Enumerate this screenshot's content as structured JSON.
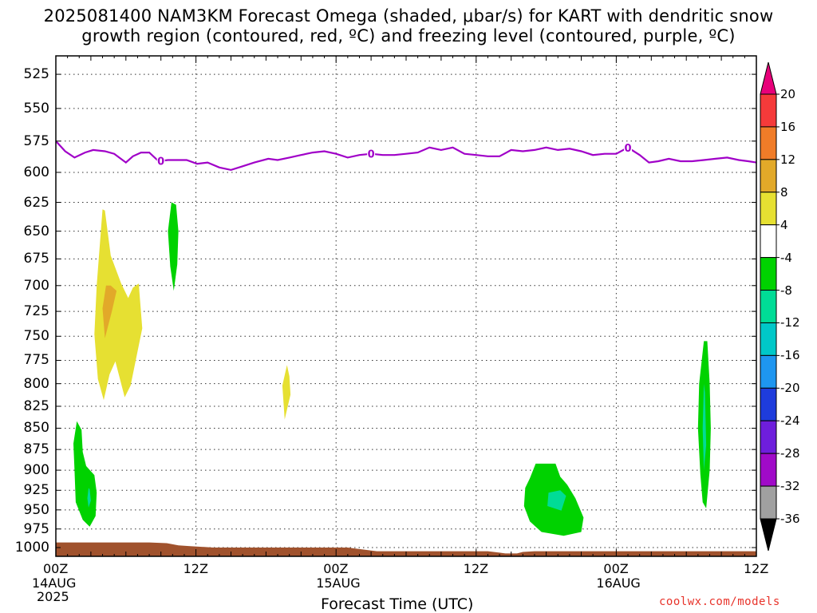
{
  "title": {
    "line1": "2025081400 NAM3KM Forecast Omega (shaded, μbar/s) for KART with dendritic snow",
    "line2": "growth region (contoured, red, ºC) and freezing level (contoured, purple, ºC)"
  },
  "footer": {
    "xlabel": "Forecast Time (UTC)",
    "credit": "coolwx.com/models"
  },
  "chart_data": {
    "type": "contour",
    "x_unit": "forecast hour from 2025-08-14 00Z",
    "x_range": [
      0,
      60
    ],
    "y_unit": "pressure (mb)",
    "y_range": [
      1012,
      512
    ],
    "y_scale": "log",
    "y_ticks": [
      525,
      550,
      575,
      600,
      625,
      650,
      675,
      700,
      725,
      750,
      775,
      800,
      825,
      850,
      875,
      900,
      925,
      950,
      975,
      1000
    ],
    "x_ticks": [
      {
        "hour": 0,
        "label": "00Z",
        "date": "14AUG",
        "year": "2025"
      },
      {
        "hour": 12,
        "label": "12Z"
      },
      {
        "hour": 24,
        "label": "00Z",
        "date": "15AUG"
      },
      {
        "hour": 36,
        "label": "12Z"
      },
      {
        "hour": 48,
        "label": "00Z",
        "date": "16AUG"
      },
      {
        "hour": 60,
        "label": "12Z"
      }
    ],
    "grid": true,
    "colorbar": {
      "labels": [
        "20",
        "16",
        "12",
        "8",
        "4",
        "-4",
        "-8",
        "-12",
        "-16",
        "-20",
        "-24",
        "-28",
        "-32",
        "-36"
      ],
      "colors": [
        "#e8007a",
        "#f53a3a",
        "#f07c28",
        "#e2a929",
        "#e6e032",
        "#ffffff",
        "#00d200",
        "#00dc96",
        "#00c8c8",
        "#1e96f0",
        "#1e3cdc",
        "#6e1edc",
        "#a00ac8",
        "#a0a0a0",
        "#000000"
      ]
    },
    "freezing_level": {
      "label": "0",
      "color": "#a000c8",
      "hours": [
        0,
        0.8,
        1.6,
        2.5,
        3.2,
        4.2,
        5,
        6,
        6.6,
        7.3,
        8,
        8.8,
        9.6,
        10.4,
        11.2,
        12.1,
        13,
        14,
        15,
        16,
        17,
        18.2,
        19,
        20,
        21,
        22,
        23,
        24,
        25,
        26,
        27,
        28,
        29,
        30,
        31,
        32,
        33,
        34,
        35,
        36,
        37,
        38,
        39,
        40,
        41,
        42,
        43,
        44,
        45,
        46,
        47,
        48,
        49,
        50,
        50.8,
        51.6,
        52.5,
        53.5,
        54.5,
        55.5,
        56.5,
        57.5,
        58.5,
        59.3,
        60
      ],
      "pressure": [
        575,
        583,
        588,
        584,
        582,
        583,
        585,
        592,
        587,
        584,
        584,
        591,
        590,
        590,
        590,
        593,
        592,
        596,
        598,
        595,
        592,
        589,
        590,
        588,
        586,
        584,
        583,
        585,
        588,
        586,
        585,
        586,
        586,
        585,
        584,
        580,
        582,
        580,
        585,
        586,
        587,
        587,
        582,
        583,
        582,
        580,
        582,
        581,
        583,
        586,
        585,
        585,
        580,
        586,
        592,
        591,
        589,
        591,
        591,
        590,
        589,
        588,
        590,
        591,
        592
      ],
      "labels_at_hours": [
        9,
        27,
        49
      ]
    },
    "omega_regions": [
      {
        "level": "4 to 8",
        "color": "#e6e032",
        "outline": [
          [
            4,
            631
          ],
          [
            3.5,
            700
          ],
          [
            3.3,
            748
          ],
          [
            3.6,
            795
          ],
          [
            4.1,
            818
          ],
          [
            4.6,
            790
          ],
          [
            5.1,
            776
          ],
          [
            5.9,
            815
          ],
          [
            6.4,
            802
          ],
          [
            7.4,
            742
          ],
          [
            7.1,
            698
          ],
          [
            6.6,
            702
          ],
          [
            6.2,
            712
          ],
          [
            5.6,
            698
          ],
          [
            4.7,
            672
          ],
          [
            4.2,
            632
          ]
        ]
      },
      {
        "level": "8 to 12",
        "color": "#e2a929",
        "outline": [
          [
            4.3,
            700
          ],
          [
            4,
            722
          ],
          [
            4.2,
            752
          ],
          [
            4.8,
            725
          ],
          [
            5.2,
            705
          ],
          [
            4.7,
            700
          ]
        ]
      },
      {
        "level": "4 to 8",
        "color": "#e6e032",
        "outline": [
          [
            19.8,
            780
          ],
          [
            19.4,
            802
          ],
          [
            19.6,
            840
          ],
          [
            20.1,
            812
          ],
          [
            20,
            792
          ]
        ]
      },
      {
        "level": "-4 to -8",
        "color": "#00d200",
        "outline": [
          [
            9.9,
            625
          ],
          [
            9.6,
            650
          ],
          [
            9.8,
            682
          ],
          [
            10.1,
            705
          ],
          [
            10.4,
            680
          ],
          [
            10.5,
            650
          ],
          [
            10.3,
            627
          ]
        ]
      },
      {
        "level": "-4 to -8",
        "color": "#00d200",
        "outline": [
          [
            1.8,
            842
          ],
          [
            1.5,
            868
          ],
          [
            1.6,
            900
          ],
          [
            1.7,
            940
          ],
          [
            2.3,
            963
          ],
          [
            2.9,
            972
          ],
          [
            3.4,
            958
          ],
          [
            3.5,
            928
          ],
          [
            3.3,
            906
          ],
          [
            2.6,
            895
          ],
          [
            2.3,
            878
          ],
          [
            2.2,
            852
          ]
        ]
      },
      {
        "level": "-8 to -12",
        "color": "#00dc96",
        "outline": [
          [
            2.8,
            922
          ],
          [
            2.7,
            935
          ],
          [
            2.8,
            947
          ],
          [
            3,
            938
          ],
          [
            2.9,
            924
          ]
        ]
      },
      {
        "level": "-4 to -8",
        "color": "#00d200",
        "outline": [
          [
            41.1,
            892
          ],
          [
            40.6,
            910
          ],
          [
            40.2,
            922
          ],
          [
            40.1,
            945
          ],
          [
            40.6,
            965
          ],
          [
            41.6,
            979
          ],
          [
            43.5,
            984
          ],
          [
            45,
            979
          ],
          [
            45.2,
            960
          ],
          [
            44.5,
            935
          ],
          [
            43.8,
            918
          ],
          [
            43.2,
            908
          ],
          [
            42.8,
            892
          ]
        ]
      },
      {
        "level": "-8 to -12",
        "color": "#00dc96",
        "outline": [
          [
            42.2,
            928
          ],
          [
            42.1,
            945
          ],
          [
            43.3,
            951
          ],
          [
            43.7,
            932
          ],
          [
            43.2,
            925
          ]
        ]
      },
      {
        "level": "-4 to -8",
        "color": "#00d200",
        "outline": [
          [
            55.5,
            755
          ],
          [
            55.1,
            800
          ],
          [
            55,
            850
          ],
          [
            55.2,
            905
          ],
          [
            55.4,
            940
          ],
          [
            55.7,
            948
          ],
          [
            56,
            900
          ],
          [
            56.1,
            850
          ],
          [
            56,
            800
          ],
          [
            55.8,
            755
          ]
        ]
      },
      {
        "level": "-8 to -12",
        "color": "#00dc96",
        "outline": [
          [
            55.5,
            800
          ],
          [
            55.4,
            850
          ],
          [
            55.5,
            900
          ],
          [
            55.7,
            870
          ],
          [
            55.6,
            810
          ]
        ]
      }
    ],
    "terrain": {
      "color": "#a0522d",
      "hours": [
        0,
        8,
        9.5,
        10.5,
        11.5,
        12.5,
        13.5,
        25,
        26,
        27.5,
        37,
        38,
        38.5,
        39.5,
        40,
        41,
        50,
        60
      ],
      "surface_pressure": [
        993,
        993,
        994,
        997,
        998,
        999,
        1000,
        1000,
        1002,
        1005,
        1005,
        1007,
        1008,
        1008,
        1006,
        1005,
        1005,
        1005
      ]
    }
  }
}
